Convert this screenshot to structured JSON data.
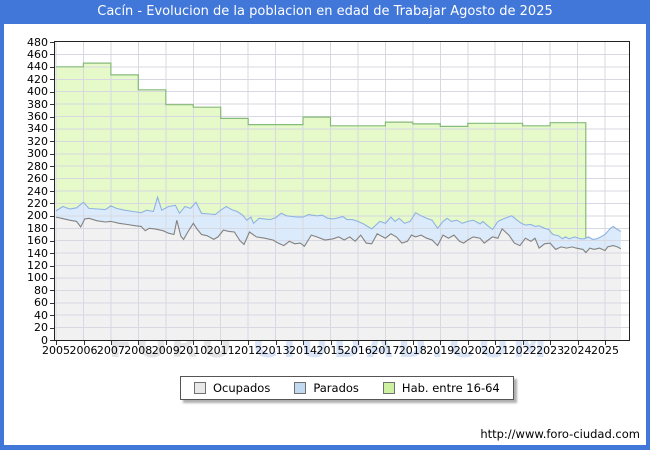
{
  "title": "Cacín - Evolucion de la poblacion en edad de Trabajar Agosto de 2025",
  "footer_url": "http://www.foro-ciudad.com",
  "watermark": {
    "part1": "FORO",
    "part2": "CIUDAD.COM"
  },
  "colors": {
    "frame_blue": "#4177d9",
    "grid": "#d8d8e2",
    "plot_border": "#222222",
    "watermark_gray": "rgba(195,195,200,0.45)",
    "watermark_blue": "rgba(170,196,238,0.45)"
  },
  "legend": [
    {
      "label": "Ocupados",
      "swatch": "#e8e8e8"
    },
    {
      "label": "Parados",
      "swatch": "#c3d9f2"
    },
    {
      "label": "Hab. entre 16-64",
      "swatch": "#ccf0a0"
    }
  ],
  "chart_data": {
    "type": "area",
    "title": "Cacín - Evolucion de la poblacion en edad de Trabajar Agosto de 2025",
    "xlabel": "",
    "ylabel": "",
    "grid": true,
    "legend_position": "bottom",
    "x_axis": {
      "min": 2005,
      "max": 2025.87,
      "labels": [
        "2005",
        "2006",
        "2007",
        "2008",
        "2009",
        "2010",
        "2011",
        "2012",
        "2013",
        "2014",
        "2015",
        "2016",
        "2017",
        "2018",
        "2019",
        "2020",
        "2021",
        "2022",
        "2023",
        "2024",
        "2025"
      ]
    },
    "y_axis": {
      "min": 0,
      "max": 480,
      "tick_step": 20
    },
    "series": [
      {
        "id": "hab",
        "name": "Hab. entre 16-64",
        "render": "step-area",
        "fill": "#e5fac8",
        "stroke": "#86ba7a",
        "start_year": 2005,
        "end_x": 2024.3,
        "annual_values": [
          440,
          446,
          427,
          403,
          379,
          375,
          357,
          347,
          347,
          359,
          345,
          345,
          351,
          348,
          344,
          349,
          349,
          345,
          350,
          350
        ]
      },
      {
        "id": "parados",
        "name": "Parados",
        "render": "line-area-stacked-top",
        "fill": "#dcebfb",
        "stroke": "#8fb3e2",
        "points": [
          [
            2005.0,
            208
          ],
          [
            2005.25,
            215
          ],
          [
            2005.5,
            211
          ],
          [
            2005.75,
            213
          ],
          [
            2006.0,
            222
          ],
          [
            2006.2,
            212
          ],
          [
            2006.5,
            211
          ],
          [
            2006.8,
            210
          ],
          [
            2007.0,
            216
          ],
          [
            2007.2,
            212
          ],
          [
            2007.5,
            209
          ],
          [
            2007.8,
            207
          ],
          [
            2008.1,
            205
          ],
          [
            2008.3,
            209
          ],
          [
            2008.55,
            207
          ],
          [
            2008.7,
            230
          ],
          [
            2008.85,
            209
          ],
          [
            2009.1,
            215
          ],
          [
            2009.35,
            217
          ],
          [
            2009.5,
            204
          ],
          [
            2009.7,
            215
          ],
          [
            2009.9,
            212
          ],
          [
            2010.1,
            222
          ],
          [
            2010.3,
            204
          ],
          [
            2010.6,
            203
          ],
          [
            2010.8,
            202
          ],
          [
            2011.0,
            209
          ],
          [
            2011.2,
            215
          ],
          [
            2011.4,
            210
          ],
          [
            2011.6,
            207
          ],
          [
            2011.8,
            201
          ],
          [
            2011.95,
            193
          ],
          [
            2012.1,
            198
          ],
          [
            2012.2,
            188
          ],
          [
            2012.4,
            196
          ],
          [
            2012.6,
            195
          ],
          [
            2012.8,
            194
          ],
          [
            2013.0,
            197
          ],
          [
            2013.2,
            204
          ],
          [
            2013.4,
            200
          ],
          [
            2013.6,
            199
          ],
          [
            2013.8,
            198
          ],
          [
            2014.0,
            198
          ],
          [
            2014.2,
            202
          ],
          [
            2014.5,
            200
          ],
          [
            2014.7,
            201
          ],
          [
            2014.9,
            196
          ],
          [
            2015.1,
            195
          ],
          [
            2015.3,
            197
          ],
          [
            2015.45,
            199
          ],
          [
            2015.6,
            194
          ],
          [
            2015.8,
            194
          ],
          [
            2016.0,
            191
          ],
          [
            2016.2,
            187
          ],
          [
            2016.5,
            179
          ],
          [
            2016.8,
            191
          ],
          [
            2017.0,
            188
          ],
          [
            2017.2,
            198
          ],
          [
            2017.35,
            191
          ],
          [
            2017.5,
            196
          ],
          [
            2017.7,
            188
          ],
          [
            2017.9,
            191
          ],
          [
            2018.1,
            205
          ],
          [
            2018.3,
            200
          ],
          [
            2018.5,
            196
          ],
          [
            2018.7,
            193
          ],
          [
            2018.9,
            180
          ],
          [
            2019.1,
            191
          ],
          [
            2019.25,
            196
          ],
          [
            2019.4,
            191
          ],
          [
            2019.6,
            193
          ],
          [
            2019.8,
            188
          ],
          [
            2020.0,
            191
          ],
          [
            2020.2,
            193
          ],
          [
            2020.45,
            187
          ],
          [
            2020.55,
            191
          ],
          [
            2020.7,
            185
          ],
          [
            2020.9,
            178
          ],
          [
            2021.1,
            191
          ],
          [
            2021.3,
            195
          ],
          [
            2021.6,
            200
          ],
          [
            2021.8,
            193
          ],
          [
            2021.95,
            188
          ],
          [
            2022.1,
            185
          ],
          [
            2022.3,
            186
          ],
          [
            2022.45,
            183
          ],
          [
            2022.6,
            184
          ],
          [
            2022.8,
            180
          ],
          [
            2022.95,
            178
          ],
          [
            2023.1,
            170
          ],
          [
            2023.3,
            168
          ],
          [
            2023.45,
            163
          ],
          [
            2023.55,
            166
          ],
          [
            2023.7,
            163
          ],
          [
            2023.9,
            166
          ],
          [
            2024.1,
            163
          ],
          [
            2024.25,
            163
          ],
          [
            2024.4,
            166
          ],
          [
            2024.55,
            162
          ],
          [
            2024.7,
            163
          ],
          [
            2024.85,
            166
          ],
          [
            2025.0,
            170
          ],
          [
            2025.2,
            180
          ],
          [
            2025.3,
            183
          ],
          [
            2025.45,
            178
          ],
          [
            2025.58,
            175
          ]
        ]
      },
      {
        "id": "ocupados",
        "name": "Ocupados",
        "render": "line-area",
        "fill": "#f1f1f1",
        "stroke": "#828282",
        "points": [
          [
            2005.0,
            198
          ],
          [
            2005.2,
            196
          ],
          [
            2005.5,
            193
          ],
          [
            2005.75,
            191
          ],
          [
            2005.9,
            182
          ],
          [
            2006.05,
            195
          ],
          [
            2006.2,
            196
          ],
          [
            2006.5,
            192
          ],
          [
            2006.8,
            190
          ],
          [
            2007.0,
            191
          ],
          [
            2007.3,
            188
          ],
          [
            2007.6,
            186
          ],
          [
            2007.9,
            184
          ],
          [
            2008.1,
            183
          ],
          [
            2008.25,
            176
          ],
          [
            2008.4,
            180
          ],
          [
            2008.6,
            179
          ],
          [
            2008.9,
            176
          ],
          [
            2009.1,
            172
          ],
          [
            2009.3,
            170
          ],
          [
            2009.4,
            193
          ],
          [
            2009.55,
            167
          ],
          [
            2009.65,
            162
          ],
          [
            2009.8,
            174
          ],
          [
            2010.0,
            188
          ],
          [
            2010.15,
            178
          ],
          [
            2010.3,
            170
          ],
          [
            2010.5,
            168
          ],
          [
            2010.75,
            162
          ],
          [
            2010.9,
            166
          ],
          [
            2011.1,
            177
          ],
          [
            2011.3,
            175
          ],
          [
            2011.5,
            174
          ],
          [
            2011.7,
            160
          ],
          [
            2011.85,
            154
          ],
          [
            2012.05,
            174
          ],
          [
            2012.3,
            166
          ],
          [
            2012.6,
            164
          ],
          [
            2012.9,
            161
          ],
          [
            2013.1,
            156
          ],
          [
            2013.3,
            152
          ],
          [
            2013.5,
            159
          ],
          [
            2013.7,
            155
          ],
          [
            2013.9,
            156
          ],
          [
            2014.05,
            151
          ],
          [
            2014.3,
            169
          ],
          [
            2014.5,
            166
          ],
          [
            2014.8,
            161
          ],
          [
            2015.1,
            163
          ],
          [
            2015.3,
            166
          ],
          [
            2015.5,
            161
          ],
          [
            2015.7,
            166
          ],
          [
            2015.9,
            159
          ],
          [
            2016.1,
            169
          ],
          [
            2016.3,
            156
          ],
          [
            2016.5,
            155
          ],
          [
            2016.7,
            171
          ],
          [
            2017.0,
            164
          ],
          [
            2017.2,
            171
          ],
          [
            2017.4,
            166
          ],
          [
            2017.6,
            156
          ],
          [
            2017.8,
            159
          ],
          [
            2017.95,
            169
          ],
          [
            2018.1,
            166
          ],
          [
            2018.3,
            169
          ],
          [
            2018.5,
            164
          ],
          [
            2018.7,
            161
          ],
          [
            2018.9,
            152
          ],
          [
            2019.1,
            169
          ],
          [
            2019.3,
            164
          ],
          [
            2019.5,
            169
          ],
          [
            2019.7,
            159
          ],
          [
            2019.85,
            156
          ],
          [
            2020.0,
            161
          ],
          [
            2020.2,
            166
          ],
          [
            2020.45,
            164
          ],
          [
            2020.6,
            156
          ],
          [
            2020.75,
            161
          ],
          [
            2020.9,
            166
          ],
          [
            2021.1,
            164
          ],
          [
            2021.25,
            179
          ],
          [
            2021.5,
            169
          ],
          [
            2021.7,
            156
          ],
          [
            2021.9,
            152
          ],
          [
            2022.1,
            164
          ],
          [
            2022.3,
            159
          ],
          [
            2022.45,
            164
          ],
          [
            2022.6,
            148
          ],
          [
            2022.8,
            155
          ],
          [
            2023.0,
            156
          ],
          [
            2023.2,
            146
          ],
          [
            2023.4,
            150
          ],
          [
            2023.6,
            148
          ],
          [
            2023.8,
            150
          ],
          [
            2023.95,
            148
          ],
          [
            2024.2,
            146
          ],
          [
            2024.3,
            141
          ],
          [
            2024.45,
            148
          ],
          [
            2024.6,
            146
          ],
          [
            2024.8,
            148
          ],
          [
            2025.0,
            144
          ],
          [
            2025.1,
            150
          ],
          [
            2025.3,
            152
          ],
          [
            2025.45,
            150
          ],
          [
            2025.58,
            147
          ]
        ]
      }
    ]
  }
}
